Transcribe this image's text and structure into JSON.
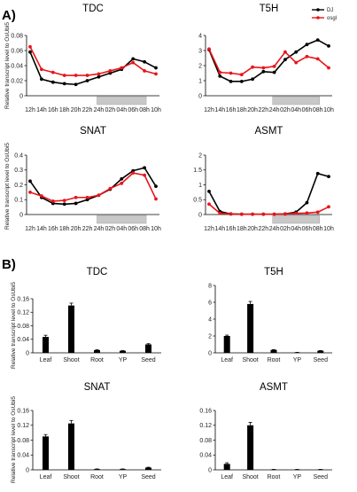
{
  "figure": {
    "panel_a_label": "A)",
    "panel_b_label": "B)",
    "y_label": "Relative transcript level to OsUbi5",
    "legend": [
      {
        "name": "DJ",
        "color": "#000000"
      },
      {
        "name": "osgl",
        "color": "#e8151b"
      }
    ]
  },
  "chart_data": [
    {
      "type": "line",
      "title": "TDC",
      "ylim": [
        0,
        0.08
      ],
      "yticks": [
        0,
        0.02,
        0.04,
        0.06,
        0.08
      ],
      "x": [
        "12h",
        "14h",
        "16h",
        "18h",
        "20h",
        "22h",
        "24h",
        "02h",
        "04h",
        "06h",
        "08h",
        "10h"
      ],
      "dark_period": [
        "24h",
        "08h"
      ],
      "series": [
        {
          "name": "DJ",
          "color": "#000000",
          "values": [
            0.058,
            0.022,
            0.018,
            0.016,
            0.015,
            0.02,
            0.025,
            0.03,
            0.035,
            0.049,
            0.045,
            0.037
          ]
        },
        {
          "name": "osgl",
          "color": "#e8151b",
          "values": [
            0.065,
            0.035,
            0.031,
            0.027,
            0.027,
            0.027,
            0.029,
            0.033,
            0.037,
            0.044,
            0.033,
            0.029
          ]
        }
      ]
    },
    {
      "type": "line",
      "title": "T5H",
      "ylim": [
        0,
        4
      ],
      "yticks": [
        0,
        1,
        2,
        3,
        4
      ],
      "x": [
        "12h",
        "14h",
        "16h",
        "18h",
        "20h",
        "22h",
        "24h",
        "02h",
        "04h",
        "06h",
        "08h",
        "10h"
      ],
      "dark_period": [
        "24h",
        "08h"
      ],
      "series": [
        {
          "name": "DJ",
          "color": "#000000",
          "values": [
            3.05,
            1.3,
            0.95,
            0.95,
            1.1,
            1.6,
            1.55,
            2.4,
            2.9,
            3.4,
            3.7,
            3.3
          ]
        },
        {
          "name": "osgl",
          "color": "#e8151b",
          "values": [
            3.1,
            1.55,
            1.5,
            1.4,
            1.9,
            1.85,
            1.95,
            2.9,
            2.2,
            2.6,
            2.45,
            1.85
          ]
        }
      ]
    },
    {
      "type": "line",
      "title": "SNAT",
      "ylim": [
        0,
        0.4
      ],
      "yticks": [
        0,
        0.1,
        0.2,
        0.3,
        0.4
      ],
      "x": [
        "12h",
        "14h",
        "16h",
        "18h",
        "20h",
        "22h",
        "24h",
        "02h",
        "04h",
        "06h",
        "08h",
        "10h"
      ],
      "dark_period": [
        "24h",
        "08h"
      ],
      "series": [
        {
          "name": "DJ",
          "color": "#000000",
          "values": [
            0.225,
            0.115,
            0.075,
            0.07,
            0.075,
            0.1,
            0.13,
            0.17,
            0.24,
            0.295,
            0.315,
            0.19
          ]
        },
        {
          "name": "osgl",
          "color": "#e8151b",
          "values": [
            0.15,
            0.125,
            0.09,
            0.095,
            0.115,
            0.115,
            0.13,
            0.175,
            0.21,
            0.28,
            0.265,
            0.105
          ]
        }
      ]
    },
    {
      "type": "line",
      "title": "ASMT",
      "ylim": [
        0,
        2
      ],
      "yticks": [
        0,
        0.5,
        1,
        1.5,
        2
      ],
      "x": [
        "12h",
        "14h",
        "16h",
        "18h",
        "20h",
        "22h",
        "24h",
        "02h",
        "04h",
        "06h",
        "08h",
        "10h"
      ],
      "dark_period": [
        "24h",
        "08h"
      ],
      "series": [
        {
          "name": "DJ",
          "color": "#000000",
          "values": [
            0.78,
            0.1,
            0.02,
            0.01,
            0.01,
            0.01,
            0.01,
            0.02,
            0.08,
            0.4,
            1.38,
            1.28
          ]
        },
        {
          "name": "osgl",
          "color": "#e8151b",
          "values": [
            0.35,
            0.04,
            0.02,
            0.01,
            0.01,
            0.01,
            0.01,
            0.02,
            0.04,
            0.05,
            0.08,
            0.26
          ]
        }
      ]
    },
    {
      "type": "bar",
      "title": "TDC",
      "ylim": [
        0,
        0.16
      ],
      "yticks": [
        0,
        0.04,
        0.08,
        0.12,
        0.16
      ],
      "categories": [
        "Leaf",
        "Shoot",
        "Root",
        "YP",
        "Seed"
      ],
      "values": [
        0.047,
        0.14,
        0.008,
        0.006,
        0.025
      ],
      "errors": [
        0.005,
        0.007,
        0.001,
        0.001,
        0.002
      ]
    },
    {
      "type": "bar",
      "title": "T5H",
      "ylim": [
        0,
        8
      ],
      "yticks": [
        0,
        2,
        4,
        6,
        8
      ],
      "categories": [
        "Leaf",
        "Shoot",
        "Root",
        "YP",
        "Seed"
      ],
      "values": [
        2.0,
        5.8,
        0.35,
        0.05,
        0.25
      ],
      "errors": [
        0.1,
        0.3,
        0.03,
        0.01,
        0.02
      ]
    },
    {
      "type": "bar",
      "title": "SNAT",
      "ylim": [
        0,
        0.16
      ],
      "yticks": [
        0,
        0.04,
        0.08,
        0.12,
        0.16
      ],
      "categories": [
        "Leaf",
        "Shoot",
        "Root",
        "YP",
        "Seed"
      ],
      "values": [
        0.09,
        0.125,
        0.002,
        0.002,
        0.006
      ],
      "errors": [
        0.005,
        0.008,
        0.0005,
        0.0005,
        0.001
      ]
    },
    {
      "type": "bar",
      "title": "ASMT",
      "ylim": [
        0,
        0.16
      ],
      "yticks": [
        0,
        0.04,
        0.08,
        0.12,
        0.16
      ],
      "categories": [
        "Leaf",
        "Shoot",
        "Root",
        "YP",
        "Seed"
      ],
      "values": [
        0.016,
        0.12,
        0.001,
        0.001,
        0.001
      ],
      "errors": [
        0.003,
        0.008,
        0.0003,
        0.0003,
        0.0003
      ]
    }
  ]
}
